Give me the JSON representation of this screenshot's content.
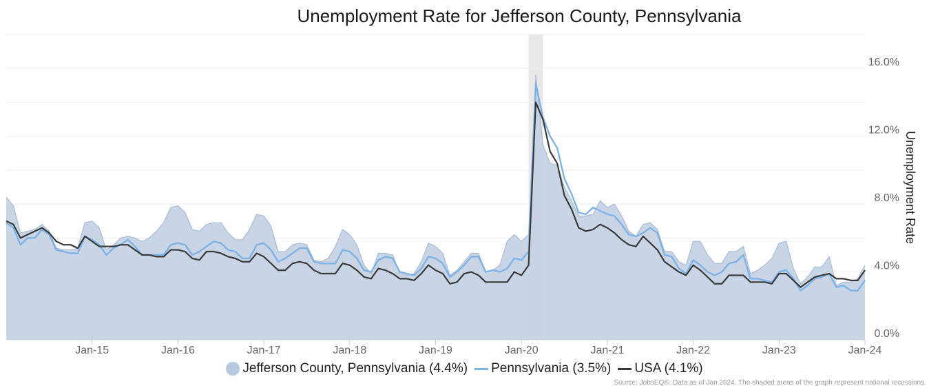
{
  "chart_data": {
    "type": "area",
    "title": "Unemployment Rate for Jefferson County, Pennsylvania",
    "ylabel": "Unemployment Rate",
    "ylim": [
      0,
      18
    ],
    "y_ticks": [
      "0.0%",
      "4.0%",
      "8.0%",
      "12.0%",
      "16.0%"
    ],
    "x_ticks": [
      "Jan-15",
      "Jan-16",
      "Jan-17",
      "Jan-18",
      "Jan-19",
      "Jan-20",
      "Jan-21",
      "Jan-22",
      "Jan-23",
      "Jan-24"
    ],
    "x_start": "Jan-14",
    "x_end": "Jan-24",
    "recession": {
      "start": "Feb-20",
      "end": "Apr-20"
    },
    "colors": {
      "area": "#c6d3e3",
      "area_line": "#a9bbd3",
      "pa": "#7fb3e6",
      "usa": "#3a3a3a",
      "recession": "#e8e8e8"
    },
    "series": [
      {
        "name": "Jefferson County, Pennsylvania (4.4%)",
        "style": "area",
        "values": [
          8.4,
          7.9,
          6.3,
          6.4,
          6.5,
          6.8,
          6.4,
          5.4,
          5.3,
          5.3,
          5.4,
          6.9,
          7.0,
          6.6,
          5.3,
          5.6,
          6.0,
          6.1,
          6.0,
          5.8,
          6.0,
          6.4,
          6.9,
          7.8,
          7.9,
          7.5,
          6.5,
          6.4,
          6.8,
          6.9,
          6.9,
          6.3,
          5.9,
          5.9,
          6.5,
          7.4,
          7.3,
          6.7,
          5.2,
          5.2,
          5.6,
          5.7,
          5.6,
          4.7,
          4.6,
          4.8,
          5.5,
          6.5,
          6.2,
          5.6,
          4.4,
          3.9,
          5.1,
          5.1,
          5.0,
          3.9,
          3.8,
          3.9,
          4.6,
          5.7,
          5.5,
          5.1,
          3.8,
          4.1,
          4.6,
          5.1,
          5.1,
          4.0,
          4.1,
          4.4,
          5.8,
          6.2,
          5.8,
          6.2,
          15.6,
          11.5,
          10.4,
          10.3,
          9.0,
          8.2,
          7.3,
          7.3,
          7.4,
          8.2,
          7.8,
          8.0,
          7.3,
          6.4,
          6.1,
          6.8,
          6.9,
          6.5,
          5.2,
          5.2,
          4.6,
          4.4,
          5.8,
          5.8,
          5.0,
          4.5,
          4.5,
          5.2,
          5.2,
          5.5,
          3.9,
          4.1,
          4.4,
          4.8,
          5.7,
          5.8,
          4.2,
          3.3,
          3.7,
          4.3,
          4.3,
          4.9,
          3.2,
          3.4,
          3.4,
          3.6,
          4.4
        ]
      },
      {
        "name": "Pennsylvania (3.5%)",
        "style": "line",
        "values": [
          6.9,
          6.6,
          5.6,
          6.0,
          6.0,
          6.5,
          6.2,
          5.3,
          5.2,
          5.1,
          5.1,
          6.1,
          5.9,
          5.6,
          5.0,
          5.4,
          5.6,
          5.9,
          5.5,
          5.0,
          5.0,
          5.0,
          5.0,
          5.6,
          5.7,
          5.6,
          5.0,
          5.2,
          5.5,
          5.8,
          5.7,
          5.3,
          5.2,
          4.8,
          4.8,
          5.6,
          5.7,
          5.3,
          4.6,
          4.8,
          5.1,
          5.4,
          5.4,
          4.6,
          4.5,
          4.5,
          4.5,
          5.3,
          5.2,
          4.8,
          4.1,
          4.0,
          4.7,
          4.9,
          4.8,
          4.0,
          3.9,
          3.8,
          4.2,
          4.9,
          4.8,
          4.5,
          3.7,
          4.0,
          4.4,
          4.9,
          4.9,
          4.0,
          4.1,
          4.0,
          4.2,
          4.8,
          4.7,
          5.2,
          15.1,
          13.1,
          12.0,
          11.3,
          9.5,
          8.6,
          7.5,
          7.4,
          7.8,
          7.6,
          7.4,
          7.3,
          6.8,
          6.2,
          6.1,
          6.3,
          6.6,
          6.3,
          5.0,
          4.9,
          4.2,
          3.9,
          4.7,
          4.4,
          4.0,
          3.8,
          4.0,
          4.5,
          4.6,
          5.0,
          3.6,
          3.6,
          3.5,
          3.4,
          4.0,
          4.1,
          3.6,
          2.9,
          3.2,
          3.6,
          3.7,
          3.9,
          3.1,
          3.2,
          2.9,
          2.9,
          3.5
        ]
      },
      {
        "name": "USA (4.1%)",
        "style": "line",
        "values": [
          7.0,
          6.8,
          6.0,
          6.2,
          6.4,
          6.6,
          6.3,
          5.8,
          5.6,
          5.6,
          5.4,
          6.1,
          5.8,
          5.5,
          5.5,
          5.5,
          5.6,
          5.6,
          5.3,
          5.0,
          5.0,
          4.9,
          4.9,
          5.3,
          5.3,
          5.2,
          4.8,
          4.7,
          5.2,
          5.2,
          5.1,
          4.9,
          4.8,
          4.6,
          4.6,
          5.1,
          4.9,
          4.5,
          4.1,
          4.1,
          4.5,
          4.6,
          4.5,
          4.1,
          3.9,
          3.9,
          3.9,
          4.5,
          4.4,
          4.1,
          3.7,
          3.6,
          4.2,
          4.1,
          3.9,
          3.6,
          3.6,
          3.5,
          3.9,
          4.4,
          4.1,
          3.9,
          3.3,
          3.4,
          3.9,
          4.0,
          3.8,
          3.4,
          3.4,
          3.4,
          3.4,
          4.0,
          3.8,
          4.4,
          14.0,
          13.0,
          11.1,
          10.4,
          8.5,
          7.7,
          6.6,
          6.4,
          6.5,
          6.8,
          6.6,
          6.3,
          5.9,
          5.6,
          5.5,
          6.1,
          5.7,
          5.3,
          4.6,
          4.3,
          4.0,
          3.8,
          4.4,
          4.1,
          3.7,
          3.3,
          3.3,
          3.8,
          3.8,
          3.8,
          3.4,
          3.4,
          3.4,
          3.3,
          3.9,
          3.9,
          3.5,
          3.1,
          3.4,
          3.7,
          3.8,
          3.9,
          3.6,
          3.6,
          3.5,
          3.5,
          4.1
        ]
      }
    ],
    "legend": {
      "placement": "bottom"
    }
  },
  "source_note": "Source: JobsEQ®. Data as of Jan 2024. The shaded areas of the graph represent national recessions."
}
